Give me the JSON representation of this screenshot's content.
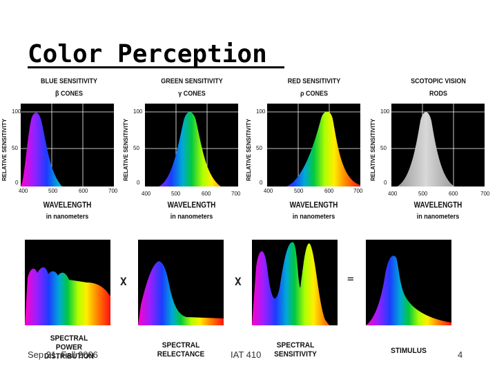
{
  "slide": {
    "title": "Color Perception",
    "footer_date": "Sep 21, Fall 2006",
    "footer_course": "IAT 410",
    "page_number": "4"
  },
  "sensitivity_panels": [
    {
      "title": "BLUE SENSITIVITY",
      "subtitle": "β CONES",
      "ylabel": "RELATIVE SENSITIVITY",
      "xlabel": "WAVELENGTH",
      "xunit": "in nanometers",
      "yticks": [
        "100",
        "50",
        "0"
      ],
      "xticks": [
        "400",
        "500",
        "600",
        "700"
      ]
    },
    {
      "title": "GREEN SENSITIVITY",
      "subtitle": "γ CONES",
      "ylabel": "RELATIVE SENSITIVITY",
      "xlabel": "WAVELENGTH",
      "xunit": "in nanometers",
      "yticks": [
        "100",
        "50",
        "0"
      ],
      "xticks": [
        "400",
        "500",
        "600",
        "700"
      ]
    },
    {
      "title": "RED SENSITIVITY",
      "subtitle": "ρ CONES",
      "ylabel": "RELATIVE SENSITIVITY",
      "xlabel": "WAVELENGTH",
      "xunit": "in nanometers",
      "yticks": [
        "100",
        "50",
        "0"
      ],
      "xticks": [
        "400",
        "500",
        "600",
        "700"
      ]
    },
    {
      "title": "SCOTOPIC VISION",
      "subtitle": "RODS",
      "ylabel": "RELATIVE SENSITIVITY",
      "xlabel": "WAVELENGTH",
      "xunit": "in nanometers",
      "yticks": [
        "100",
        "50",
        "0"
      ],
      "xticks": [
        "400",
        "500",
        "600",
        "700"
      ]
    }
  ],
  "product_row": {
    "operators": [
      "X",
      "X",
      "="
    ],
    "captions": [
      [
        "SPECTRAL",
        "POWER",
        "DISTRIBUTION"
      ],
      [
        "SPECTRAL",
        "RELECTANCE"
      ],
      [
        "SPECTRAL",
        "SENSITIVITY"
      ],
      [
        "STIMULUS"
      ]
    ]
  },
  "colors": {
    "background": "#ffffff",
    "plot": "#000000",
    "grid": "#ffffff"
  }
}
